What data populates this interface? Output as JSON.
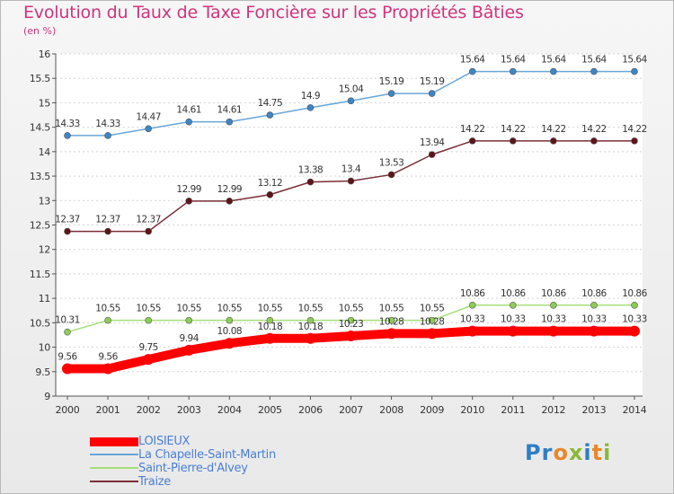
{
  "title": "Evolution du Taux de Taxe Foncière sur les Propriétés Bâties",
  "unit_label": "(en %)",
  "chart_data": {
    "type": "line",
    "title": "Evolution du Taux de Taxe Foncière sur les Propriétés Bâties",
    "ylabel": "(en %)",
    "xlabel": "",
    "ylim": [
      9,
      16
    ],
    "yticks": [
      "9",
      "9.5",
      "10",
      "10.5",
      "11",
      "11.5",
      "12",
      "12.5",
      "13",
      "13.5",
      "14",
      "14.5",
      "15",
      "15.5",
      "16"
    ],
    "x": [
      "2000",
      "2001",
      "2002",
      "2003",
      "2004",
      "2005",
      "2006",
      "2007",
      "2008",
      "2009",
      "2010",
      "2011",
      "2012",
      "2013",
      "2014"
    ],
    "series": [
      {
        "name": "La Chapelle-Saint-Martin",
        "color": "#6aa6d8",
        "marker": "#3d86c6",
        "values": [
          14.33,
          14.33,
          14.47,
          14.61,
          14.61,
          14.75,
          14.9,
          15.04,
          15.19,
          15.19,
          15.64,
          15.64,
          15.64,
          15.64,
          15.64
        ],
        "labels": [
          "14.33",
          "14.33",
          "14.47",
          "14.61",
          "14.61",
          "14.75",
          "14.9",
          "15.04",
          "15.19",
          "15.19",
          "15.64",
          "15.64",
          "15.64",
          "15.64",
          "15.64"
        ]
      },
      {
        "name": "Traize",
        "color": "#7a2e36",
        "marker": "#5e1418",
        "values": [
          12.37,
          12.37,
          12.37,
          12.99,
          12.99,
          13.12,
          13.38,
          13.4,
          13.53,
          13.94,
          14.22,
          14.22,
          14.22,
          14.22,
          14.22
        ],
        "labels": [
          "12.37",
          "12.37",
          "12.37",
          "12.99",
          "12.99",
          "13.12",
          "13.38",
          "13.4",
          "13.53",
          "13.94",
          "14.22",
          "14.22",
          "14.22",
          "14.22",
          "14.22"
        ]
      },
      {
        "name": "Saint-Pierre-d'Alvey",
        "color": "#a6df7a",
        "marker": "#8ccd55",
        "values": [
          10.31,
          10.55,
          10.55,
          10.55,
          10.55,
          10.55,
          10.55,
          10.55,
          10.55,
          10.55,
          10.86,
          10.86,
          10.86,
          10.86,
          10.86
        ],
        "labels": [
          "10.31",
          "10.55",
          "10.55",
          "10.55",
          "10.55",
          "10.55",
          "10.55",
          "10.55",
          "10.55",
          "10.55",
          "10.86",
          "10.86",
          "10.86",
          "10.86",
          "10.86"
        ]
      },
      {
        "name": "LOISIEUX",
        "color": "#ff0000",
        "marker": "#ff0000",
        "values": [
          9.56,
          9.56,
          9.75,
          9.94,
          10.08,
          10.18,
          10.18,
          10.23,
          10.28,
          10.28,
          10.33,
          10.33,
          10.33,
          10.33,
          10.33
        ],
        "labels": [
          "9.56",
          "9.56",
          "9.75",
          "9.94",
          "10.08",
          "10.18",
          "10.18",
          "10.23",
          "10.28",
          "10.28",
          "10.33",
          "10.33",
          "10.33",
          "10.33",
          "10.33"
        ]
      }
    ],
    "legend": [
      "LOISIEUX",
      "La Chapelle-Saint-Martin",
      "Saint-Pierre-d'Alvey",
      "Traize"
    ]
  },
  "legend_colors": [
    "#ff0000",
    "#6aa6d8",
    "#a6df7a",
    "#7a2e36"
  ],
  "logo": {
    "part1": "Pr",
    "part2": "o",
    "part3": "x",
    "part4": "i",
    "part5": "t",
    "part6": "i"
  }
}
